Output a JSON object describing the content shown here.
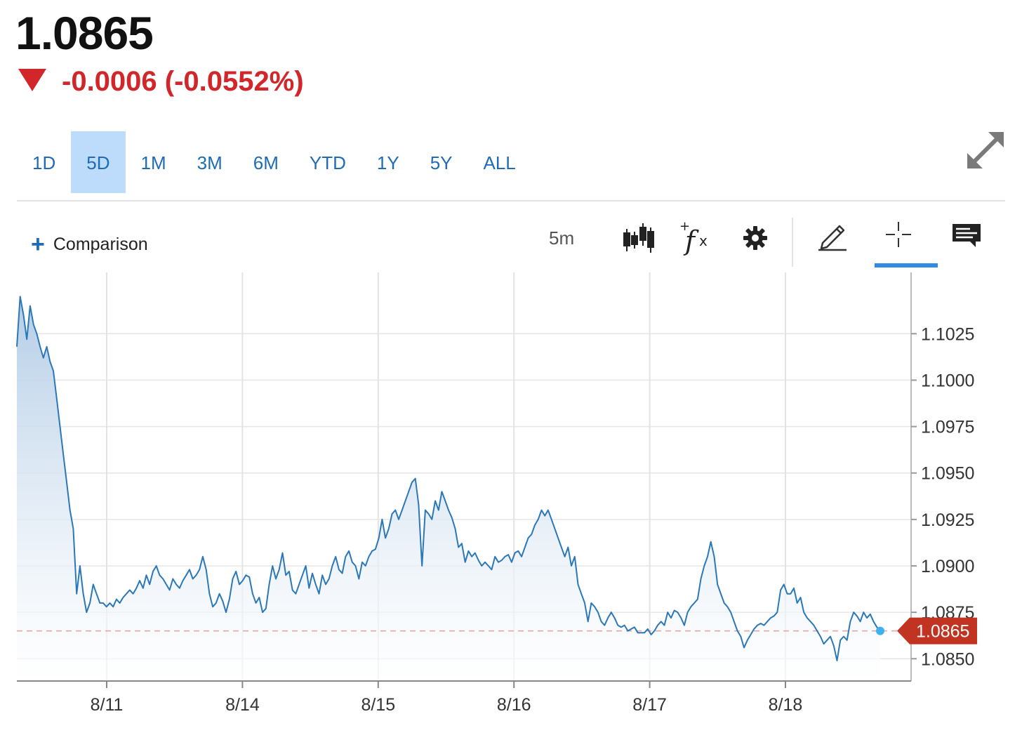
{
  "quote": {
    "price": "1.0865",
    "change": "-0.0006 (-0.0552%)",
    "direction_icon": "triangle-down-icon",
    "down_color": "#d1272b"
  },
  "ranges": [
    {
      "label": "1D",
      "active": false
    },
    {
      "label": "5D",
      "active": true
    },
    {
      "label": "1M",
      "active": false
    },
    {
      "label": "3M",
      "active": false
    },
    {
      "label": "6M",
      "active": false
    },
    {
      "label": "YTD",
      "active": false
    },
    {
      "label": "1Y",
      "active": false
    },
    {
      "label": "5Y",
      "active": false
    },
    {
      "label": "ALL",
      "active": false
    }
  ],
  "toolbar": {
    "comparison_label": "Comparison",
    "interval": "5m",
    "icons": [
      "candlestick-icon",
      "function-icon",
      "gear-icon",
      "pencil-icon",
      "crosshair-icon",
      "comment-icon"
    ],
    "active_tool": "crosshair-icon",
    "expand_icon": "expand-icon"
  },
  "chart_data": {
    "type": "area",
    "x_labels": [
      "8/11",
      "8/14",
      "8/15",
      "8/16",
      "8/17",
      "8/18"
    ],
    "y_ticks": [
      "1.1025",
      "1.1000",
      "1.0975",
      "1.0950",
      "1.0925",
      "1.0900",
      "1.0875",
      "1.0850"
    ],
    "ylim": [
      1.0838,
      1.1058
    ],
    "current_value": 1.0865,
    "current_label": "1.0865",
    "line_color": "#2b78b8",
    "grid": true,
    "series": [
      {
        "values": [
          1.1018,
          1.1045,
          1.1035,
          1.1022,
          1.104,
          1.103,
          1.1025,
          1.1018,
          1.1012,
          1.1018,
          1.101,
          1.1005,
          1.099,
          1.0975,
          1.096,
          1.0945,
          1.093,
          1.092,
          1.0885,
          1.09,
          1.0885,
          1.0875,
          1.088,
          1.089,
          1.0885,
          1.088,
          1.088,
          1.0878,
          1.088,
          1.0878,
          1.0882,
          1.088,
          1.0883,
          1.0885,
          1.0887,
          1.0885,
          1.0888,
          1.0892,
          1.0888,
          1.0895,
          1.089,
          1.0897,
          1.09,
          1.0895,
          1.0893,
          1.089,
          1.0887,
          1.0893,
          1.089,
          1.0888,
          1.0892,
          1.0895,
          1.0898,
          1.0893,
          1.0895,
          1.0898,
          1.0905,
          1.0898,
          1.0885,
          1.0878,
          1.088,
          1.0885,
          1.0881,
          1.0875,
          1.0882,
          1.0893,
          1.0897,
          1.089,
          1.0892,
          1.0895,
          1.0894,
          1.0885,
          1.088,
          1.0883,
          1.0875,
          1.0877,
          1.089,
          1.09,
          1.0893,
          1.0898,
          1.0907,
          1.0895,
          1.0897,
          1.0887,
          1.0885,
          1.089,
          1.0895,
          1.09,
          1.0888,
          1.0896,
          1.089,
          1.0885,
          1.0895,
          1.089,
          1.0893,
          1.09,
          1.0905,
          1.0898,
          1.0896,
          1.0905,
          1.0908,
          1.0902,
          1.09,
          1.0893,
          1.0902,
          1.09,
          1.0905,
          1.0908,
          1.0909,
          1.0915,
          1.0925,
          1.0915,
          1.092,
          1.0928,
          1.093,
          1.0925,
          1.093,
          1.0935,
          1.094,
          1.0945,
          1.0947,
          1.0933,
          1.09,
          1.093,
          1.0928,
          1.0925,
          1.0935,
          1.093,
          1.094,
          1.0935,
          1.093,
          1.0926,
          1.092,
          1.091,
          1.0912,
          1.0902,
          1.0908,
          1.0905,
          1.0907,
          1.0903,
          1.09,
          1.0902,
          1.09,
          1.0898,
          1.0905,
          1.0902,
          1.0903,
          1.0905,
          1.0906,
          1.0902,
          1.0907,
          1.0908,
          1.0905,
          1.091,
          1.0915,
          1.0917,
          1.0922,
          1.0925,
          1.093,
          1.0927,
          1.093,
          1.0925,
          1.092,
          1.0915,
          1.091,
          1.0905,
          1.091,
          1.09,
          1.0905,
          1.089,
          1.0885,
          1.088,
          1.087,
          1.088,
          1.0878,
          1.0875,
          1.087,
          1.0868,
          1.0872,
          1.0875,
          1.0872,
          1.0868,
          1.0867,
          1.0868,
          1.0865,
          1.0866,
          1.0867,
          1.0864,
          1.0864,
          1.0864,
          1.0866,
          1.0863,
          1.0865,
          1.0868,
          1.087,
          1.0868,
          1.0875,
          1.0872,
          1.0876,
          1.0875,
          1.0872,
          1.0868,
          1.0875,
          1.0878,
          1.088,
          1.0882,
          1.0893,
          1.09,
          1.0905,
          1.0913,
          1.0905,
          1.089,
          1.0885,
          1.088,
          1.0878,
          1.0875,
          1.087,
          1.0865,
          1.0862,
          1.0856,
          1.086,
          1.0863,
          1.0866,
          1.0868,
          1.0869,
          1.0868,
          1.087,
          1.0872,
          1.0873,
          1.0875,
          1.0887,
          1.089,
          1.0885,
          1.0885,
          1.0888,
          1.088,
          1.0883,
          1.0875,
          1.0872,
          1.087,
          1.0868,
          1.0865,
          1.0862,
          1.0858,
          1.086,
          1.0862,
          1.0857,
          1.0849,
          1.086,
          1.0862,
          1.086,
          1.087,
          1.0875,
          1.0873,
          1.087,
          1.0875,
          1.0872,
          1.0874,
          1.087,
          1.0867,
          1.0865
        ]
      }
    ]
  }
}
